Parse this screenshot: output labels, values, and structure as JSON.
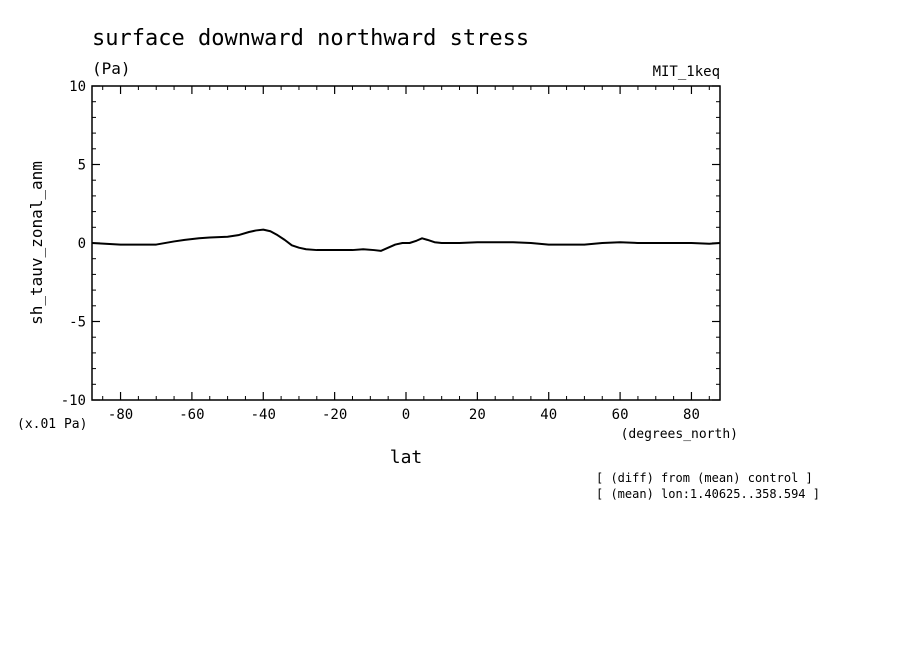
{
  "chart_data": {
    "type": "line",
    "title": "surface downward northward stress",
    "units": "(Pa)",
    "model_label": "MIT_1keq",
    "ylabel": "sh_tauv_zonal_anm",
    "y_scale_label": "(x.01 Pa)",
    "xlabel": "lat",
    "x_units": "(degrees_north)",
    "notes": [
      "[ (diff) from (mean) control ]",
      "[ (mean) lon:1.40625..358.594 ]"
    ],
    "xlim": [
      -88,
      88
    ],
    "ylim": [
      -10,
      10
    ],
    "x_ticks": [
      -80,
      -60,
      -40,
      -20,
      0,
      20,
      40,
      60,
      80
    ],
    "x_tick_labels": [
      "-80",
      "-60",
      "-40",
      "-20",
      "0",
      "20",
      "40",
      "60",
      "80"
    ],
    "y_ticks": [
      -10,
      -5,
      0,
      5,
      10
    ],
    "y_tick_labels": [
      "-10",
      "-5",
      "0",
      "5",
      "10"
    ],
    "grid": false,
    "series": [
      {
        "x": [
          -88,
          -80,
          -75,
          -70,
          -65,
          -62,
          -58,
          -55,
          -50,
          -47,
          -44,
          -42,
          -40,
          -38,
          -36,
          -34,
          -32,
          -30,
          -28,
          -25,
          -20,
          -15,
          -12,
          -9,
          -7,
          -5,
          -3,
          -1,
          1,
          3,
          4.5,
          6,
          8,
          10,
          15,
          20,
          25,
          30,
          35,
          40,
          45,
          50,
          55,
          60,
          65,
          70,
          75,
          80,
          85,
          88
        ],
        "y": [
          0,
          -0.1,
          -0.1,
          -0.1,
          0.1,
          0.2,
          0.3,
          0.35,
          0.4,
          0.5,
          0.7,
          0.8,
          0.85,
          0.75,
          0.5,
          0.2,
          -0.15,
          -0.3,
          -0.4,
          -0.45,
          -0.45,
          -0.45,
          -0.4,
          -0.45,
          -0.5,
          -0.3,
          -0.1,
          0,
          0,
          0.15,
          0.3,
          0.2,
          0.05,
          0,
          0,
          0.05,
          0.05,
          0.05,
          0,
          -0.1,
          -0.1,
          -0.1,
          0,
          0.05,
          0,
          0,
          0,
          0,
          -0.05,
          0
        ]
      }
    ]
  }
}
